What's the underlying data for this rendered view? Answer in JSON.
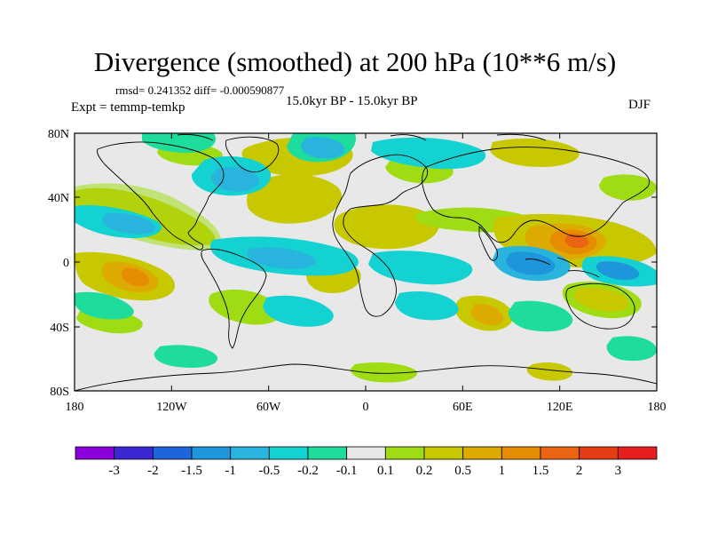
{
  "title": "Divergence (smoothed) at 200 hPa (10**6 m/s)",
  "stats": "rmsd= 0.241352  diff= -0.000590877",
  "period": "15.0kyr BP - 15.0kyr BP",
  "experiment": "Expt = temmp-temkp",
  "season": "DJF",
  "map": {
    "lat_ticks": [
      "80N",
      "40N",
      "0",
      "40S",
      "80S"
    ],
    "lon_ticks": [
      "180",
      "120W",
      "60W",
      "0",
      "60E",
      "120E",
      "180"
    ],
    "background": "#e8e8e8"
  },
  "colorbar": {
    "labels": [
      "-3",
      "-2",
      "-1.5",
      "-1",
      "-0.5",
      "-0.2",
      "-0.1",
      "0.1",
      "0.2",
      "0.5",
      "1",
      "1.5",
      "2",
      "3"
    ],
    "colors": [
      "#8c00dc",
      "#3c28d2",
      "#1e64dc",
      "#1e96dc",
      "#28b4dc",
      "#14d2d2",
      "#1edc9b",
      "#e8e8e8",
      "#a0dc14",
      "#c8c800",
      "#dcaa00",
      "#e68c00",
      "#eb6414",
      "#e63c14",
      "#e61e1e"
    ]
  }
}
